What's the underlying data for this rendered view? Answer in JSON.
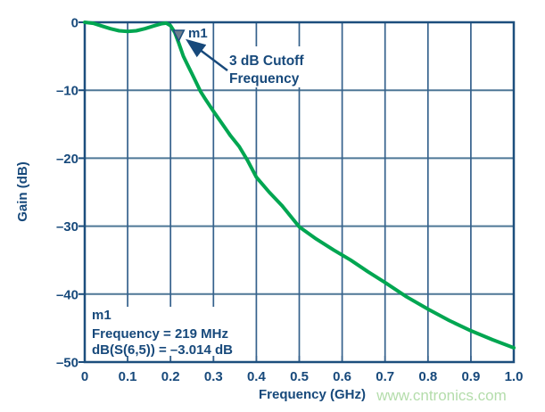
{
  "chart_data": {
    "type": "line",
    "title": "",
    "xlabel": "Frequency (GHz)",
    "ylabel": "Gain (dB)",
    "xlim": [
      0,
      1.0
    ],
    "ylim": [
      -50,
      0
    ],
    "grid": true,
    "x_ticks": [
      0,
      0.1,
      0.2,
      0.3,
      0.4,
      0.5,
      0.6,
      0.7,
      0.8,
      0.9,
      1.0
    ],
    "x_tick_labels": [
      "0",
      "0.1",
      "0.2",
      "0.3",
      "0.4",
      "0.5",
      "0.6",
      "0.7",
      "0.8",
      "0.9",
      "1.0"
    ],
    "y_ticks": [
      0,
      -10,
      -20,
      -30,
      -40,
      -50
    ],
    "y_tick_labels": [
      "0",
      "–10",
      "–20",
      "–30",
      "–40",
      "–50"
    ],
    "series": [
      {
        "name": "dB(S(6,5))",
        "color": "#00a651",
        "points": [
          [
            0.0,
            0.0
          ],
          [
            0.02,
            -0.15
          ],
          [
            0.04,
            -0.55
          ],
          [
            0.06,
            -0.95
          ],
          [
            0.08,
            -1.25
          ],
          [
            0.1,
            -1.35
          ],
          [
            0.12,
            -1.25
          ],
          [
            0.14,
            -0.95
          ],
          [
            0.16,
            -0.55
          ],
          [
            0.18,
            -0.2
          ],
          [
            0.19,
            -0.12
          ],
          [
            0.2,
            -0.5
          ],
          [
            0.21,
            -1.5
          ],
          [
            0.219,
            -3.014
          ],
          [
            0.23,
            -5.0
          ],
          [
            0.24,
            -6.3
          ],
          [
            0.25,
            -7.6
          ],
          [
            0.26,
            -8.9
          ],
          [
            0.27,
            -10.2
          ],
          [
            0.28,
            -11.2
          ],
          [
            0.3,
            -13.1
          ],
          [
            0.32,
            -14.9
          ],
          [
            0.34,
            -16.7
          ],
          [
            0.36,
            -18.3
          ],
          [
            0.38,
            -20.4
          ],
          [
            0.4,
            -22.8
          ],
          [
            0.43,
            -25.0
          ],
          [
            0.46,
            -27.0
          ],
          [
            0.5,
            -30.1
          ],
          [
            0.54,
            -31.9
          ],
          [
            0.58,
            -33.5
          ],
          [
            0.62,
            -35.0
          ],
          [
            0.66,
            -36.7
          ],
          [
            0.7,
            -38.3
          ],
          [
            0.75,
            -40.4
          ],
          [
            0.8,
            -42.2
          ],
          [
            0.85,
            -43.9
          ],
          [
            0.9,
            -45.4
          ],
          [
            0.95,
            -46.7
          ],
          [
            1.0,
            -47.9
          ]
        ]
      }
    ],
    "marker": {
      "id": "m1",
      "label": "m1",
      "frequency_ghz": 0.219,
      "value_db": -3.014
    },
    "annotation": {
      "lines": [
        "3 dB Cutoff",
        "Frequency"
      ],
      "points_to": "m1"
    },
    "info_box": {
      "lines": [
        "m1",
        "Frequency = 219 MHz",
        "dB(S(6,5)) = –3.014 dB"
      ]
    },
    "watermark": "www.cntronics.com",
    "legend": "none"
  },
  "colors": {
    "text_navy": "#17497b",
    "grid_horizontal": "#4e7796",
    "grid_vertical": "#35618c",
    "border": "#1c4e7d",
    "curve_green": "#00a651",
    "marker_fill": "#6d7e8f",
    "watermark_green": "#b4ddab",
    "background": "#ffffff"
  }
}
